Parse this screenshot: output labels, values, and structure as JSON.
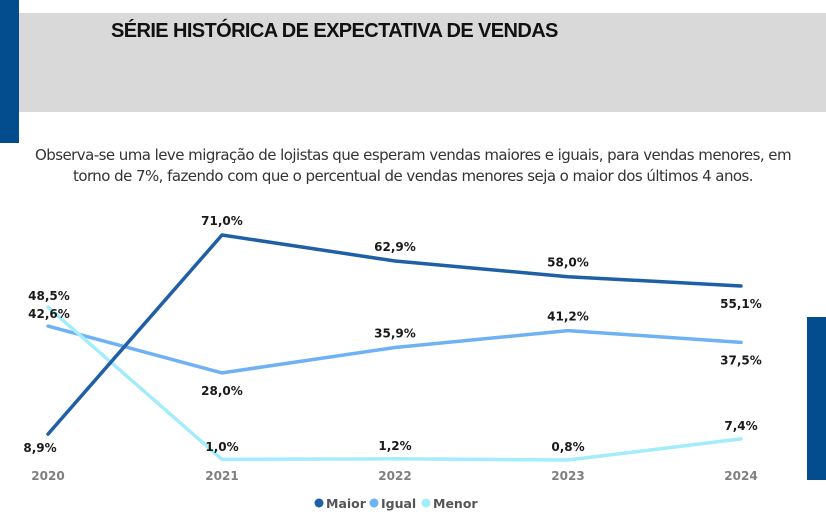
{
  "header": {
    "title": "SÉRIE HISTÓRICA DE EXPECTATIVA DE VENDAS"
  },
  "description": {
    "line1": "Observa-se uma leve migração de lojistas que esperam vendas maiores e iguais, para vendas menores, em",
    "line2": "torno de 7%, fazendo com que o percentual de vendas menores seja o maior dos últimos 4 anos."
  },
  "colors": {
    "accent_bar": "#034d8e",
    "header_bg": "#d9d9d9"
  },
  "chart_data": {
    "type": "line",
    "title": "SÉRIE HISTÓRICA DE EXPECTATIVA DE VENDAS",
    "xlabel": "",
    "ylabel": "",
    "categories": [
      "2020",
      "2021",
      "2022",
      "2023",
      "2024"
    ],
    "ylim": [
      0,
      75
    ],
    "grid": false,
    "legend_position": "bottom",
    "series": [
      {
        "name": "Maior",
        "color": "#1f5fa6",
        "values": [
          8.9,
          71.0,
          62.9,
          58.0,
          55.1
        ],
        "labels": [
          "8,9%",
          "71,0%",
          "62,9%",
          "58,0%",
          "55,1%"
        ]
      },
      {
        "name": "Igual",
        "color": "#6fb1f5",
        "values": [
          42.6,
          28.0,
          35.9,
          41.2,
          37.5
        ],
        "labels": [
          "42,6%",
          "28,0%",
          "35,9%",
          "41,2%",
          "37,5%"
        ]
      },
      {
        "name": "Menor",
        "color": "#a3ecfb",
        "values": [
          48.5,
          1.0,
          1.2,
          0.8,
          7.4
        ],
        "labels": [
          "48,5%",
          "1,0%",
          "1,2%",
          "0,8%",
          "7,4%"
        ]
      }
    ]
  }
}
